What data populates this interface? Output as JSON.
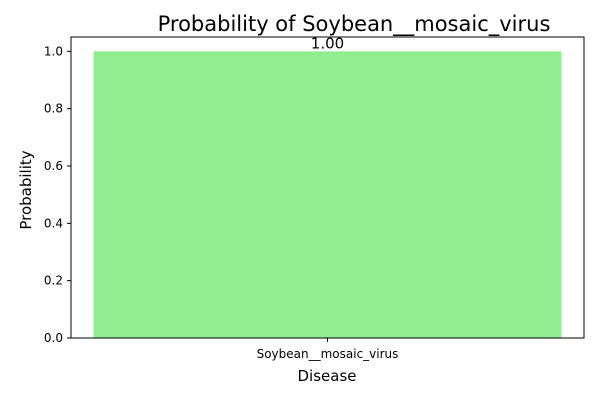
{
  "chart_data": {
    "type": "bar",
    "title": "Probability of Soybean__mosaic_virus",
    "xlabel": "Disease",
    "ylabel": "Probability",
    "categories": [
      "Soybean__mosaic_virus"
    ],
    "values": [
      1.0
    ],
    "data_labels": [
      "1.00"
    ],
    "ylim": [
      0,
      1.05
    ],
    "yticks": [
      0.0,
      0.2,
      0.4,
      0.6,
      0.8,
      1.0
    ],
    "ytick_labels": [
      "0.0",
      "0.2",
      "0.4",
      "0.6",
      "0.8",
      "1.0"
    ],
    "bar_color": "#90ee90",
    "grid": false,
    "legend": "none"
  }
}
